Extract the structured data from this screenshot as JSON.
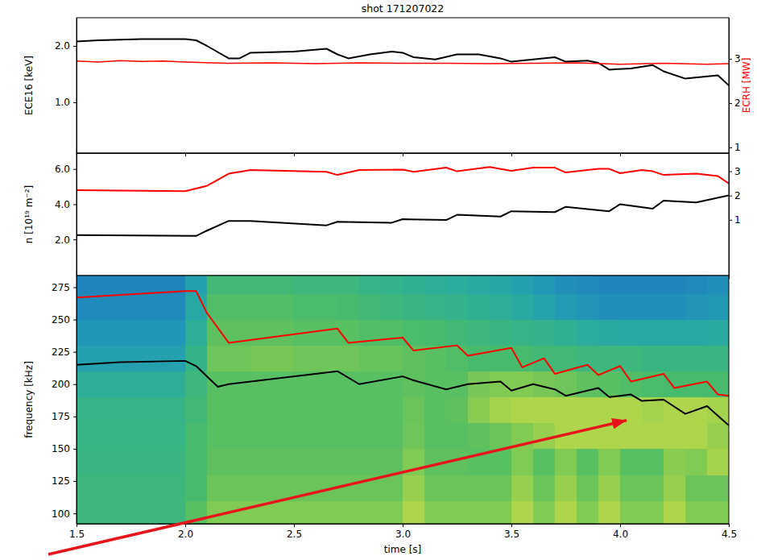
{
  "chart_data": [
    {
      "type": "line",
      "title": "shot 171207022",
      "y_label": "ECE16 [keV]",
      "y2_label": "ECRH [MW]",
      "xlim": [
        1.5,
        4.5
      ],
      "xticks": [
        1.5,
        2,
        2.5,
        3,
        3.5,
        4,
        4.5
      ],
      "ylim": [
        0.1,
        2.5
      ],
      "yticks": [
        {
          "value": 1,
          "label": "1.0"
        },
        {
          "value": 2,
          "label": "2.0"
        }
      ],
      "y2lim": [
        0.87,
        3.93
      ],
      "y2ticks": [
        1,
        2,
        3
      ],
      "tick_labels": "y",
      "series": [
        {
          "color": "#000000",
          "x": [
            1.5,
            1.6,
            1.8,
            2.0,
            2.05,
            2.1,
            2.2,
            2.25,
            2.3,
            2.5,
            2.65,
            2.7,
            2.75,
            2.85,
            2.95,
            3.0,
            3.05,
            3.15,
            3.25,
            3.35,
            3.45,
            3.5,
            3.6,
            3.7,
            3.75,
            3.85,
            3.9,
            3.95,
            4.05,
            4.15,
            4.2,
            4.3,
            4.45,
            4.5
          ],
          "values": [
            2.08,
            2.1,
            2.12,
            2.12,
            2.1,
            2.0,
            1.78,
            1.78,
            1.88,
            1.9,
            1.95,
            1.85,
            1.78,
            1.85,
            1.9,
            1.88,
            1.8,
            1.76,
            1.85,
            1.85,
            1.78,
            1.72,
            1.76,
            1.8,
            1.72,
            1.74,
            1.7,
            1.58,
            1.6,
            1.66,
            1.55,
            1.42,
            1.48,
            1.3
          ]
        },
        {
          "color": "#ff0000",
          "axis": "y2",
          "x": [
            1.5,
            1.6,
            1.7,
            1.8,
            1.9,
            2.0,
            2.2,
            2.4,
            2.6,
            2.8,
            3.0,
            3.2,
            3.4,
            3.6,
            3.8,
            4.0,
            4.2,
            4.4,
            4.5
          ],
          "values": [
            2.95,
            2.93,
            2.96,
            2.94,
            2.95,
            2.93,
            2.9,
            2.91,
            2.89,
            2.91,
            2.9,
            2.9,
            2.89,
            2.9,
            2.91,
            2.88,
            2.9,
            2.88,
            2.89
          ]
        }
      ]
    },
    {
      "type": "line",
      "y_label": "n [10¹⁹ m⁻²]",
      "xlim": [
        1.5,
        4.5
      ],
      "xticks": [
        1.5,
        2,
        2.5,
        3,
        3.5,
        4,
        4.5
      ],
      "ylim": [
        -0.05,
        6.9
      ],
      "yticks": [
        {
          "value": 2,
          "label": "2.0"
        },
        {
          "value": 4,
          "label": "4.0"
        },
        {
          "value": 6,
          "label": "6.0"
        }
      ],
      "y2lim": [
        -1.3,
        3.75
      ],
      "y2ticks": [
        1,
        2,
        3
      ],
      "tick_labels": "y",
      "series": [
        {
          "color": "#000000",
          "x": [
            1.5,
            2.05,
            2.1,
            2.2,
            2.3,
            2.65,
            2.7,
            2.95,
            3.0,
            3.2,
            3.25,
            3.45,
            3.5,
            3.7,
            3.75,
            3.95,
            4.0,
            4.15,
            4.2,
            4.35,
            4.5
          ],
          "values": [
            2.25,
            2.2,
            2.5,
            3.05,
            3.05,
            2.8,
            3.0,
            2.95,
            3.15,
            3.1,
            3.4,
            3.3,
            3.6,
            3.55,
            3.85,
            3.6,
            4.0,
            3.75,
            4.2,
            4.1,
            4.5
          ]
        },
        {
          "color": "#ff0000",
          "axis": "y2",
          "x": [
            1.5,
            2.0,
            2.1,
            2.2,
            2.3,
            2.65,
            2.7,
            2.8,
            3.0,
            3.05,
            3.2,
            3.25,
            3.4,
            3.5,
            3.6,
            3.7,
            3.75,
            3.9,
            3.95,
            4.0,
            4.1,
            4.15,
            4.2,
            4.35,
            4.45,
            4.5
          ],
          "values": [
            2.22,
            2.18,
            2.4,
            2.9,
            3.05,
            2.98,
            2.85,
            3.05,
            3.07,
            2.98,
            3.15,
            3.0,
            3.18,
            3.02,
            3.15,
            3.15,
            2.95,
            3.1,
            3.1,
            2.92,
            3.05,
            3.0,
            2.85,
            2.9,
            2.8,
            2.5
          ]
        }
      ]
    },
    {
      "type": "heatmap",
      "x_label": "time [s]",
      "y_label": "frequency [kHz]",
      "xlim": [
        1.5,
        4.5
      ],
      "xticks": [
        1.5,
        {
          "value": 2,
          "label": "2.0"
        },
        2.5,
        {
          "value": 3,
          "label": "3.0"
        },
        3.5,
        {
          "value": 4,
          "label": "4.0"
        },
        4.5
      ],
      "ylim": [
        92,
        284
      ],
      "yticks": [
        100,
        125,
        150,
        175,
        200,
        225,
        250,
        275
      ],
      "x_edges": [
        1.5,
        1.6,
        1.7,
        1.8,
        1.9,
        2.0,
        2.1,
        2.2,
        2.3,
        2.4,
        2.5,
        2.6,
        2.7,
        2.8,
        2.9,
        3.0,
        3.1,
        3.2,
        3.3,
        3.4,
        3.5,
        3.6,
        3.7,
        3.8,
        3.9,
        4.0,
        4.1,
        4.2,
        4.3,
        4.4,
        4.5
      ],
      "y_edges": [
        90,
        110,
        130,
        150,
        170,
        190,
        210,
        230,
        250,
        270,
        290
      ],
      "zlim": [
        0,
        1
      ],
      "z": [
        [
          0.5,
          0.5,
          0.5,
          0.5,
          0.5,
          0.6,
          0.7,
          0.7,
          0.7,
          0.7,
          0.7,
          0.7,
          0.7,
          0.7,
          0.7,
          0.8,
          0.7,
          0.7,
          0.7,
          0.7,
          0.8,
          0.7,
          0.8,
          0.7,
          0.8,
          0.7,
          0.7,
          0.8,
          0.7,
          0.7
        ],
        [
          0.5,
          0.5,
          0.5,
          0.5,
          0.5,
          0.55,
          0.65,
          0.65,
          0.65,
          0.65,
          0.65,
          0.65,
          0.65,
          0.65,
          0.65,
          0.75,
          0.65,
          0.65,
          0.65,
          0.65,
          0.75,
          0.65,
          0.75,
          0.65,
          0.75,
          0.65,
          0.65,
          0.75,
          0.65,
          0.65
        ],
        [
          0.48,
          0.48,
          0.48,
          0.48,
          0.48,
          0.55,
          0.62,
          0.62,
          0.62,
          0.62,
          0.62,
          0.62,
          0.62,
          0.62,
          0.62,
          0.7,
          0.62,
          0.62,
          0.6,
          0.6,
          0.7,
          0.6,
          0.7,
          0.6,
          0.7,
          0.6,
          0.6,
          0.72,
          0.7,
          0.78
        ],
        [
          0.47,
          0.47,
          0.47,
          0.47,
          0.47,
          0.55,
          0.6,
          0.6,
          0.6,
          0.6,
          0.6,
          0.6,
          0.6,
          0.6,
          0.6,
          0.66,
          0.6,
          0.6,
          0.62,
          0.65,
          0.7,
          0.75,
          0.8,
          0.8,
          0.8,
          0.8,
          0.8,
          0.8,
          0.8,
          0.75
        ],
        [
          0.46,
          0.46,
          0.46,
          0.46,
          0.46,
          0.52,
          0.6,
          0.6,
          0.6,
          0.6,
          0.6,
          0.6,
          0.6,
          0.6,
          0.6,
          0.65,
          0.6,
          0.62,
          0.72,
          0.78,
          0.8,
          0.8,
          0.8,
          0.8,
          0.8,
          0.8,
          0.78,
          0.8,
          0.8,
          0.78
        ],
        [
          0.4,
          0.4,
          0.4,
          0.4,
          0.4,
          0.5,
          0.6,
          0.6,
          0.6,
          0.6,
          0.6,
          0.6,
          0.6,
          0.6,
          0.6,
          0.62,
          0.6,
          0.6,
          0.68,
          0.7,
          0.7,
          0.68,
          0.66,
          0.62,
          0.6,
          0.58,
          0.56,
          0.55,
          0.55,
          0.55
        ],
        [
          0.3,
          0.3,
          0.3,
          0.3,
          0.3,
          0.45,
          0.66,
          0.66,
          0.68,
          0.68,
          0.66,
          0.66,
          0.66,
          0.64,
          0.64,
          0.62,
          0.6,
          0.58,
          0.55,
          0.55,
          0.55,
          0.52,
          0.52,
          0.5,
          0.5,
          0.5,
          0.48,
          0.48,
          0.48,
          0.48
        ],
        [
          0.25,
          0.25,
          0.25,
          0.25,
          0.25,
          0.4,
          0.62,
          0.62,
          0.62,
          0.62,
          0.6,
          0.6,
          0.6,
          0.58,
          0.58,
          0.56,
          0.55,
          0.52,
          0.5,
          0.48,
          0.46,
          0.44,
          0.42,
          0.38,
          0.36,
          0.35,
          0.35,
          0.35,
          0.35,
          0.36
        ],
        [
          0.2,
          0.2,
          0.2,
          0.2,
          0.2,
          0.35,
          0.58,
          0.58,
          0.58,
          0.58,
          0.56,
          0.56,
          0.55,
          0.52,
          0.5,
          0.48,
          0.46,
          0.44,
          0.42,
          0.4,
          0.36,
          0.32,
          0.28,
          0.24,
          0.22,
          0.22,
          0.22,
          0.22,
          0.24,
          0.26
        ],
        [
          0.18,
          0.18,
          0.18,
          0.18,
          0.18,
          0.3,
          0.52,
          0.52,
          0.52,
          0.52,
          0.5,
          0.5,
          0.5,
          0.46,
          0.44,
          0.42,
          0.4,
          0.38,
          0.36,
          0.34,
          0.3,
          0.26,
          0.22,
          0.2,
          0.18,
          0.18,
          0.18,
          0.18,
          0.2,
          0.22
        ]
      ],
      "series": [
        {
          "type": "line",
          "color": "#ff0000",
          "x": [
            1.5,
            2.0,
            2.05,
            2.1,
            2.2,
            2.7,
            2.75,
            3.0,
            3.05,
            3.25,
            3.3,
            3.5,
            3.55,
            3.65,
            3.7,
            3.85,
            3.9,
            4.0,
            4.05,
            4.2,
            4.25,
            4.4,
            4.45,
            4.5
          ],
          "values": [
            267,
            272,
            272,
            255,
            232,
            243,
            232,
            236,
            226,
            230,
            222,
            228,
            213,
            220,
            208,
            215,
            207,
            214,
            202,
            208,
            197,
            202,
            192,
            191
          ]
        },
        {
          "type": "line",
          "color": "#000000",
          "x": [
            1.5,
            1.7,
            2.0,
            2.05,
            2.15,
            2.2,
            2.7,
            2.8,
            3.0,
            3.05,
            3.2,
            3.3,
            3.45,
            3.5,
            3.6,
            3.7,
            3.75,
            3.9,
            3.95,
            4.05,
            4.1,
            4.2,
            4.3,
            4.4,
            4.5
          ],
          "values": [
            215,
            217,
            218,
            214,
            198,
            200,
            210,
            200,
            206,
            203,
            196,
            200,
            202,
            195,
            200,
            196,
            191,
            197,
            190,
            192,
            187,
            188,
            177,
            183,
            168
          ]
        }
      ],
      "annotations": [
        {
          "type": "arrow",
          "x": 4.03,
          "y": 172,
          "color": "#e8141b"
        }
      ]
    }
  ]
}
